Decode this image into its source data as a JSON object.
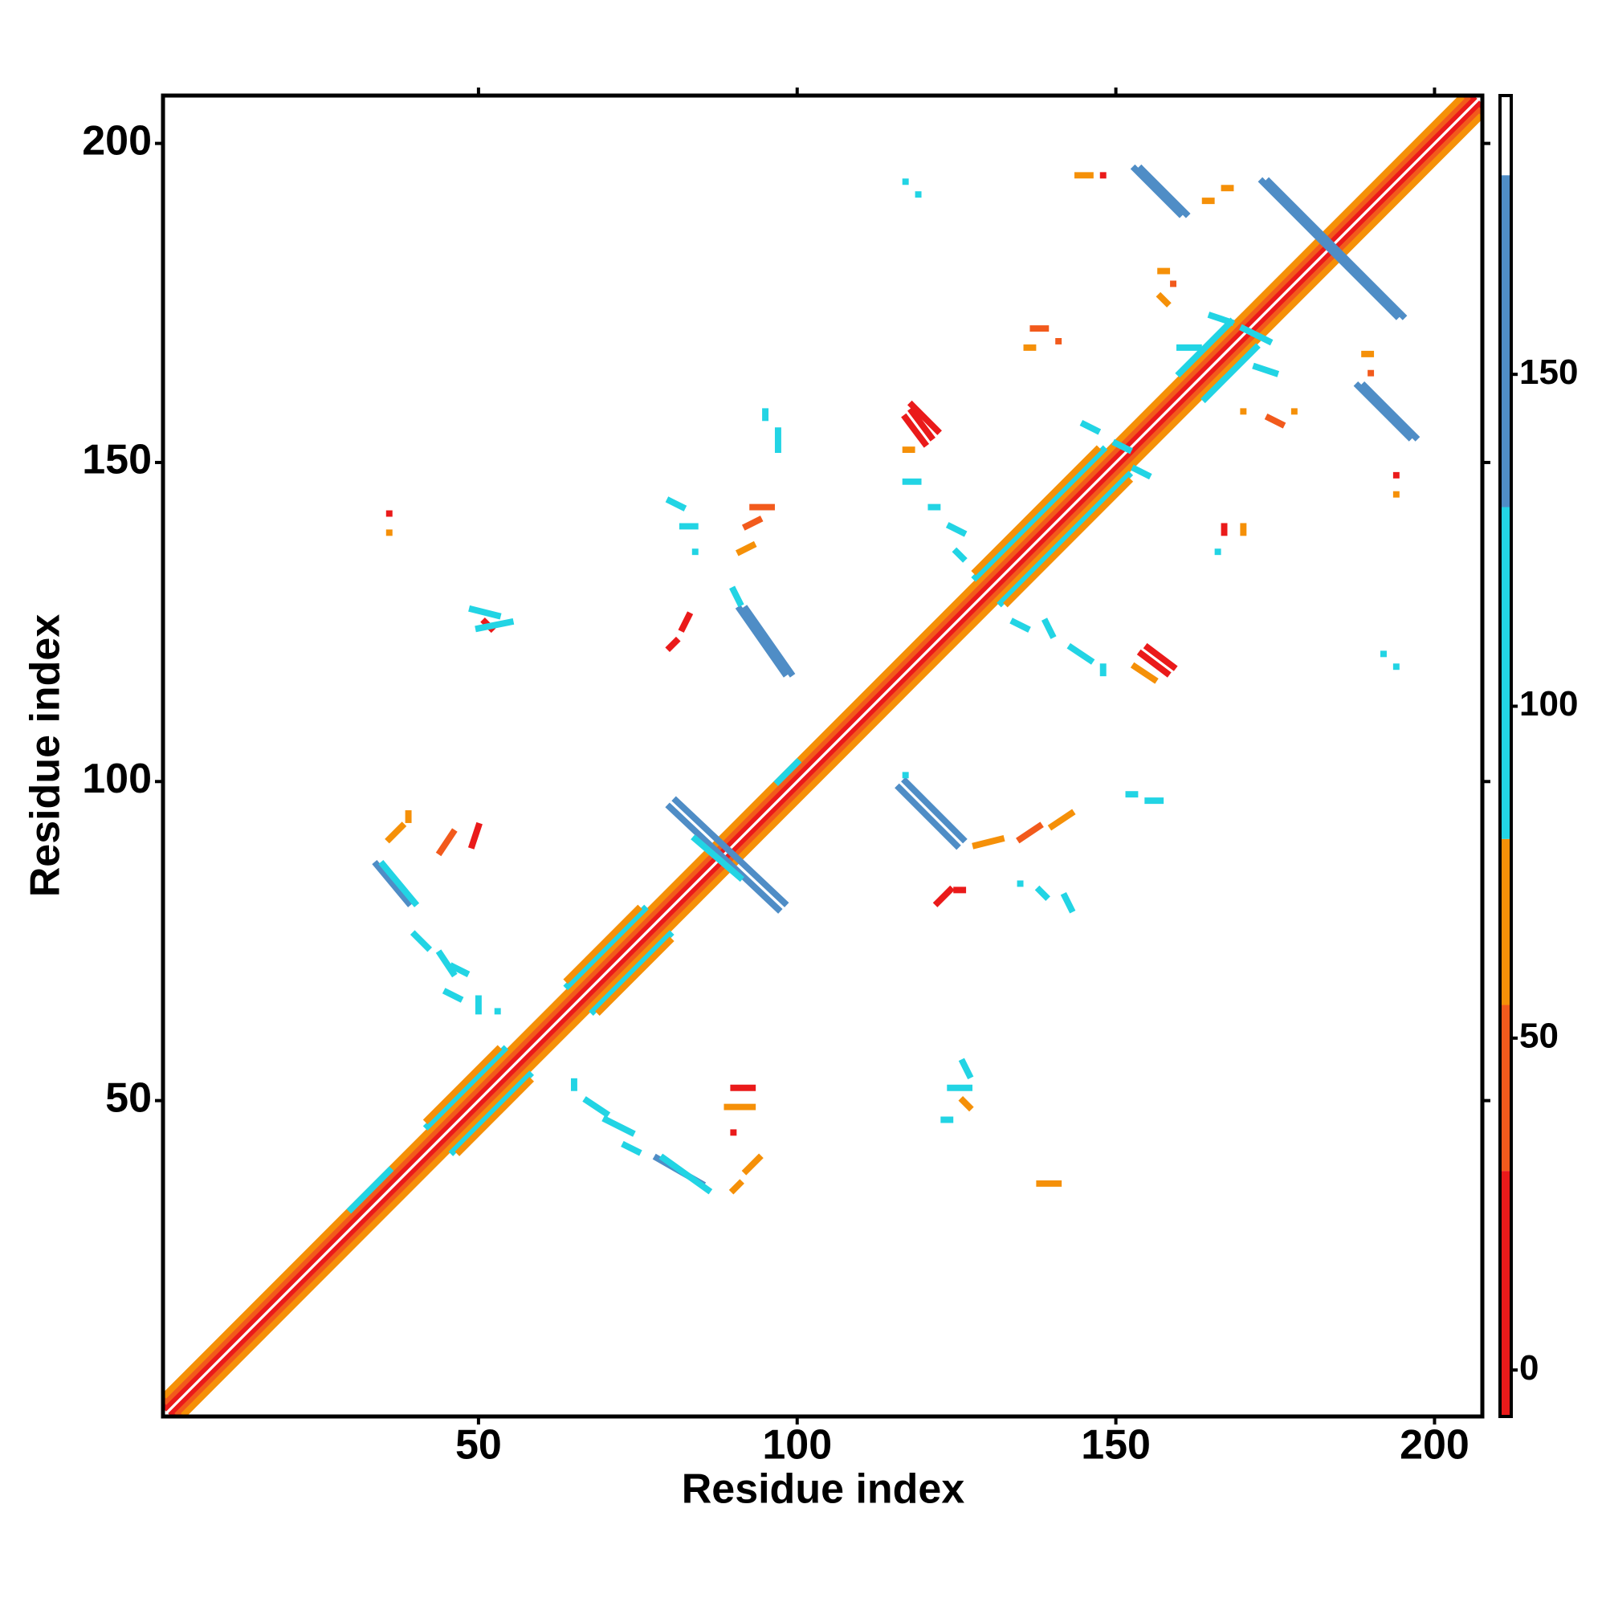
{
  "chart_data": {
    "type": "contact-map",
    "x_label": "Residue index",
    "y_label": "Residue index",
    "xlim": [
      0.5,
      207.5
    ],
    "ylim": [
      0.5,
      207.5
    ],
    "xticks": [
      50,
      100,
      150,
      200
    ],
    "yticks": [
      50,
      100,
      150,
      200
    ],
    "colorbar": {
      "lim": [
        -7,
        192
      ],
      "ticks": [
        0,
        50,
        100,
        150
      ],
      "bands": [
        {
          "from": -7,
          "to": 30,
          "color": "#ea1a1a"
        },
        {
          "from": 30,
          "to": 55,
          "color": "#f25a1c"
        },
        {
          "from": 55,
          "to": 80,
          "color": "#f59008"
        },
        {
          "from": 80,
          "to": 130,
          "color": "#22d4e4"
        },
        {
          "from": 130,
          "to": 180,
          "color": "#4f8dc6"
        },
        {
          "from": 180,
          "to": 192,
          "color": "#ffffff"
        }
      ]
    },
    "segments": [
      [
        1,
        2,
        206,
        207,
        10
      ],
      [
        2,
        1,
        207,
        206,
        10
      ],
      [
        1,
        3,
        205,
        207,
        40
      ],
      [
        3,
        1,
        207,
        205,
        40
      ],
      [
        1,
        4,
        204,
        207,
        65
      ],
      [
        4,
        1,
        207,
        204,
        65
      ],
      [
        42,
        46,
        54,
        58,
        90
      ],
      [
        46,
        42,
        58,
        54,
        90
      ],
      [
        42,
        47,
        53,
        58,
        60
      ],
      [
        47,
        42,
        58,
        53,
        60
      ],
      [
        64,
        68,
        76,
        80,
        90
      ],
      [
        68,
        64,
        80,
        76,
        90
      ],
      [
        64,
        69,
        75,
        80,
        60
      ],
      [
        69,
        64,
        80,
        75,
        60
      ],
      [
        128,
        132,
        148,
        152,
        90
      ],
      [
        132,
        128,
        152,
        148,
        90
      ],
      [
        128,
        133,
        147,
        152,
        60
      ],
      [
        133,
        128,
        152,
        147,
        60
      ],
      [
        160,
        164,
        168,
        172,
        90
      ],
      [
        164,
        160,
        172,
        168,
        90
      ],
      [
        30,
        33,
        36,
        39,
        90
      ],
      [
        97,
        100,
        100,
        103,
        95
      ],
      [
        153,
        196,
        160,
        189,
        150
      ],
      [
        154,
        196,
        161,
        189,
        140
      ],
      [
        173,
        194,
        194,
        173,
        150
      ],
      [
        174,
        194,
        195,
        173,
        140
      ],
      [
        188,
        162,
        196,
        154,
        150
      ],
      [
        189,
        162,
        197,
        154,
        140
      ],
      [
        118,
        158,
        121,
        154,
        20
      ],
      [
        117,
        157,
        120,
        153,
        30
      ],
      [
        118,
        159,
        122,
        155,
        25
      ],
      [
        117,
        152,
        118,
        152,
        60
      ],
      [
        155,
        121,
        159,
        118,
        20
      ],
      [
        154,
        120,
        158,
        117,
        30
      ],
      [
        153,
        118,
        156,
        116,
        60
      ],
      [
        91,
        127,
        98,
        117,
        150
      ],
      [
        92,
        127,
        99,
        117,
        140
      ],
      [
        90,
        130,
        91,
        128,
        95
      ],
      [
        82,
        124,
        83,
        126,
        10
      ],
      [
        80,
        121,
        81,
        122,
        10
      ],
      [
        80,
        96,
        97,
        80,
        150
      ],
      [
        81,
        97,
        98,
        81,
        140
      ],
      [
        84,
        91,
        91,
        85,
        95
      ],
      [
        34,
        87,
        39,
        81,
        150
      ],
      [
        35,
        87,
        40,
        81,
        95
      ],
      [
        36,
        91,
        38,
        93,
        60
      ],
      [
        39,
        95,
        39,
        94,
        60
      ],
      [
        44,
        89,
        46,
        92,
        40
      ],
      [
        49,
        90,
        50,
        93,
        20
      ],
      [
        40,
        76,
        42,
        74,
        95
      ],
      [
        44,
        73,
        46,
        70,
        110
      ],
      [
        46,
        71,
        48,
        70,
        120
      ],
      [
        45,
        67,
        47,
        66,
        95
      ],
      [
        50,
        66,
        50,
        64,
        120
      ],
      [
        53,
        64,
        53,
        64,
        95
      ],
      [
        65,
        53,
        65,
        52,
        95
      ],
      [
        67,
        50,
        70,
        48,
        95
      ],
      [
        70,
        47,
        74,
        45,
        110
      ],
      [
        73,
        43,
        75,
        42,
        95
      ],
      [
        78,
        41,
        85,
        37,
        150
      ],
      [
        79,
        41,
        86,
        36,
        95
      ],
      [
        90,
        52,
        93,
        52,
        10
      ],
      [
        89,
        49,
        93,
        49,
        60
      ],
      [
        90,
        45,
        90,
        45,
        30
      ],
      [
        92,
        39,
        94,
        41,
        60
      ],
      [
        90,
        36,
        91,
        37,
        60
      ],
      [
        124,
        52,
        127,
        52,
        95
      ],
      [
        126,
        56,
        127,
        54,
        120
      ],
      [
        126,
        50,
        127,
        49,
        60
      ],
      [
        123,
        47,
        124,
        47,
        95
      ],
      [
        138,
        37,
        141,
        37,
        60
      ],
      [
        117,
        100,
        126,
        91,
        150
      ],
      [
        116,
        99,
        125,
        90,
        150
      ],
      [
        117,
        101,
        117,
        101,
        95
      ],
      [
        128,
        90,
        132,
        91,
        60
      ],
      [
        135,
        91,
        138,
        93,
        40
      ],
      [
        140,
        93,
        143,
        95,
        60
      ],
      [
        122,
        81,
        124,
        83,
        10
      ],
      [
        125,
        83,
        126,
        83,
        10
      ],
      [
        135,
        84,
        135,
        84,
        95
      ],
      [
        138,
        83,
        139,
        82,
        120
      ],
      [
        142,
        82,
        143,
        80,
        120
      ],
      [
        152,
        98,
        153,
        98,
        95
      ],
      [
        155,
        97,
        157,
        97,
        95
      ],
      [
        117,
        147,
        119,
        147,
        95
      ],
      [
        121,
        143,
        122,
        143,
        120
      ],
      [
        124,
        140,
        126,
        139,
        130
      ],
      [
        125,
        136,
        126,
        135,
        120
      ],
      [
        80,
        144,
        82,
        143,
        130
      ],
      [
        82,
        140,
        84,
        140,
        130
      ],
      [
        84,
        136,
        84,
        136,
        95
      ],
      [
        93,
        143,
        96,
        143,
        40
      ],
      [
        92,
        140,
        94,
        141,
        40
      ],
      [
        91,
        136,
        93,
        137,
        60
      ],
      [
        49,
        127,
        53,
        126,
        95
      ],
      [
        51,
        125,
        52,
        124,
        10
      ],
      [
        50,
        124,
        55,
        125,
        120
      ],
      [
        36,
        142,
        36,
        142,
        20
      ],
      [
        36,
        139,
        36,
        139,
        60
      ],
      [
        95,
        158,
        95,
        157,
        95
      ],
      [
        97,
        155,
        97,
        152,
        95
      ],
      [
        117,
        194,
        117,
        194,
        95
      ],
      [
        119,
        192,
        119,
        192,
        130
      ],
      [
        144,
        195,
        146,
        195,
        60
      ],
      [
        148,
        195,
        148,
        195,
        20
      ],
      [
        164,
        191,
        165,
        191,
        60
      ],
      [
        167,
        193,
        168,
        193,
        60
      ],
      [
        157,
        180,
        158,
        180,
        60
      ],
      [
        157,
        176,
        158,
        175,
        60
      ],
      [
        159,
        178,
        159,
        178,
        40
      ],
      [
        137,
        171,
        139,
        171,
        40
      ],
      [
        136,
        168,
        137,
        168,
        60
      ],
      [
        141,
        169,
        141,
        169,
        40
      ],
      [
        165,
        173,
        168,
        172,
        120
      ],
      [
        170,
        171,
        174,
        169,
        95
      ],
      [
        172,
        165,
        175,
        164,
        95
      ],
      [
        160,
        168,
        163,
        168,
        95
      ],
      [
        170,
        158,
        170,
        158,
        60
      ],
      [
        174,
        157,
        176,
        156,
        40
      ],
      [
        178,
        158,
        178,
        158,
        60
      ],
      [
        167,
        140,
        167,
        139,
        20
      ],
      [
        170,
        140,
        170,
        139,
        60
      ],
      [
        166,
        136,
        166,
        136,
        95
      ],
      [
        189,
        167,
        190,
        167,
        60
      ],
      [
        190,
        164,
        190,
        164,
        40
      ],
      [
        194,
        148,
        194,
        148,
        20
      ],
      [
        194,
        145,
        194,
        145,
        60
      ],
      [
        192,
        120,
        192,
        120,
        130
      ],
      [
        194,
        118,
        194,
        118,
        130
      ],
      [
        145,
        156,
        147,
        155,
        130
      ],
      [
        150,
        153,
        152,
        152,
        95
      ],
      [
        153,
        149,
        155,
        148,
        130
      ],
      [
        134,
        125,
        136,
        124,
        130
      ],
      [
        139,
        125,
        140,
        123,
        130
      ],
      [
        143,
        121,
        146,
        119,
        95
      ],
      [
        148,
        118,
        148,
        117,
        130
      ]
    ]
  }
}
